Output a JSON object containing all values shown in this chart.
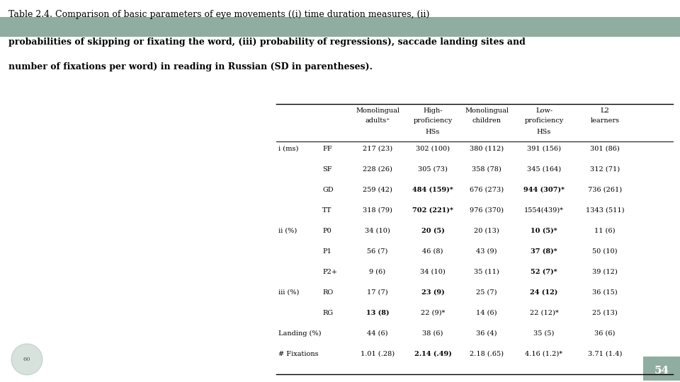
{
  "title_line1": "Table 2.4. Comparison of basic parameters of eye movements ((i) time duration measures, (ii)",
  "title_line2": "probabilities of skipping or fixating the word, (iii) probability of regressions), saccade landing sites and",
  "title_line3": "number of fixations per word) in reading in Russian (SD in parentheses).",
  "highlight_color": "#8fada0",
  "bg_color": "#ffffff",
  "page_number": "54",
  "page_number_bg": "#8fada0",
  "col_headers": [
    [
      "Monolingual",
      "adults⁺",
      ""
    ],
    [
      "High-",
      "proficiency",
      "HSs"
    ],
    [
      "Monolingual",
      "children",
      ""
    ],
    [
      "Low-",
      "proficiency",
      "HSs"
    ],
    [
      "L2",
      "learners",
      ""
    ]
  ],
  "rows": [
    {
      "group": "i (ms)",
      "measure": "FF",
      "vals": [
        "217 (23)",
        "302 (100)",
        "380 (112)",
        "391 (156)",
        "301 (86)"
      ],
      "bold_cols": []
    },
    {
      "group": "",
      "measure": "SF",
      "vals": [
        "228 (26)",
        "305 (73)",
        "358 (78)",
        "345 (164)",
        "312 (71)"
      ],
      "bold_cols": []
    },
    {
      "group": "",
      "measure": "GD",
      "vals": [
        "259 (42)",
        "484 (159)*",
        "676 (273)",
        "944 (307)*",
        "736 (261)"
      ],
      "bold_cols": [
        1,
        3
      ]
    },
    {
      "group": "",
      "measure": "TT",
      "vals": [
        "318 (79)",
        "702 (221)*",
        "976 (370)",
        "1554(439)*",
        "1343 (511)"
      ],
      "bold_cols": [
        1
      ]
    },
    {
      "group": "ii (%)",
      "measure": "P0",
      "vals": [
        "34 (10)",
        "20 (5)",
        "20 (13)",
        "10 (5)*",
        "11 (6)"
      ],
      "bold_cols": [
        1,
        3
      ]
    },
    {
      "group": "",
      "measure": "P1",
      "vals": [
        "56 (7)",
        "46 (8)",
        "43 (9)",
        "37 (8)*",
        "50 (10)"
      ],
      "bold_cols": [
        3
      ]
    },
    {
      "group": "",
      "measure": "P2+",
      "vals": [
        "9 (6)",
        "34 (10)",
        "35 (11)",
        "52 (7)*",
        "39 (12)"
      ],
      "bold_cols": [
        3
      ]
    },
    {
      "group": "iii (%)",
      "measure": "RO",
      "vals": [
        "17 (7)",
        "23 (9)",
        "25 (7)",
        "24 (12)",
        "36 (15)"
      ],
      "bold_cols": [
        1,
        3
      ]
    },
    {
      "group": "",
      "measure": "RG",
      "vals": [
        "13 (8)",
        "22 (9)*",
        "14 (6)",
        "22 (12)*",
        "25 (13)"
      ],
      "bold_cols": [
        0
      ]
    },
    {
      "group": "Landing (%)",
      "measure": "",
      "vals": [
        "44 (6)",
        "38 (6)",
        "36 (4)",
        "35 (5)",
        "36 (6)"
      ],
      "bold_cols": []
    },
    {
      "group": "# Fixations",
      "measure": "",
      "vals": [
        "1.01 (.28)",
        "2.14 (.49)",
        "2.18 (.65)",
        "4.16 (1.2)*",
        "3.71 (1.4)"
      ],
      "bold_cols": [
        1
      ]
    }
  ]
}
